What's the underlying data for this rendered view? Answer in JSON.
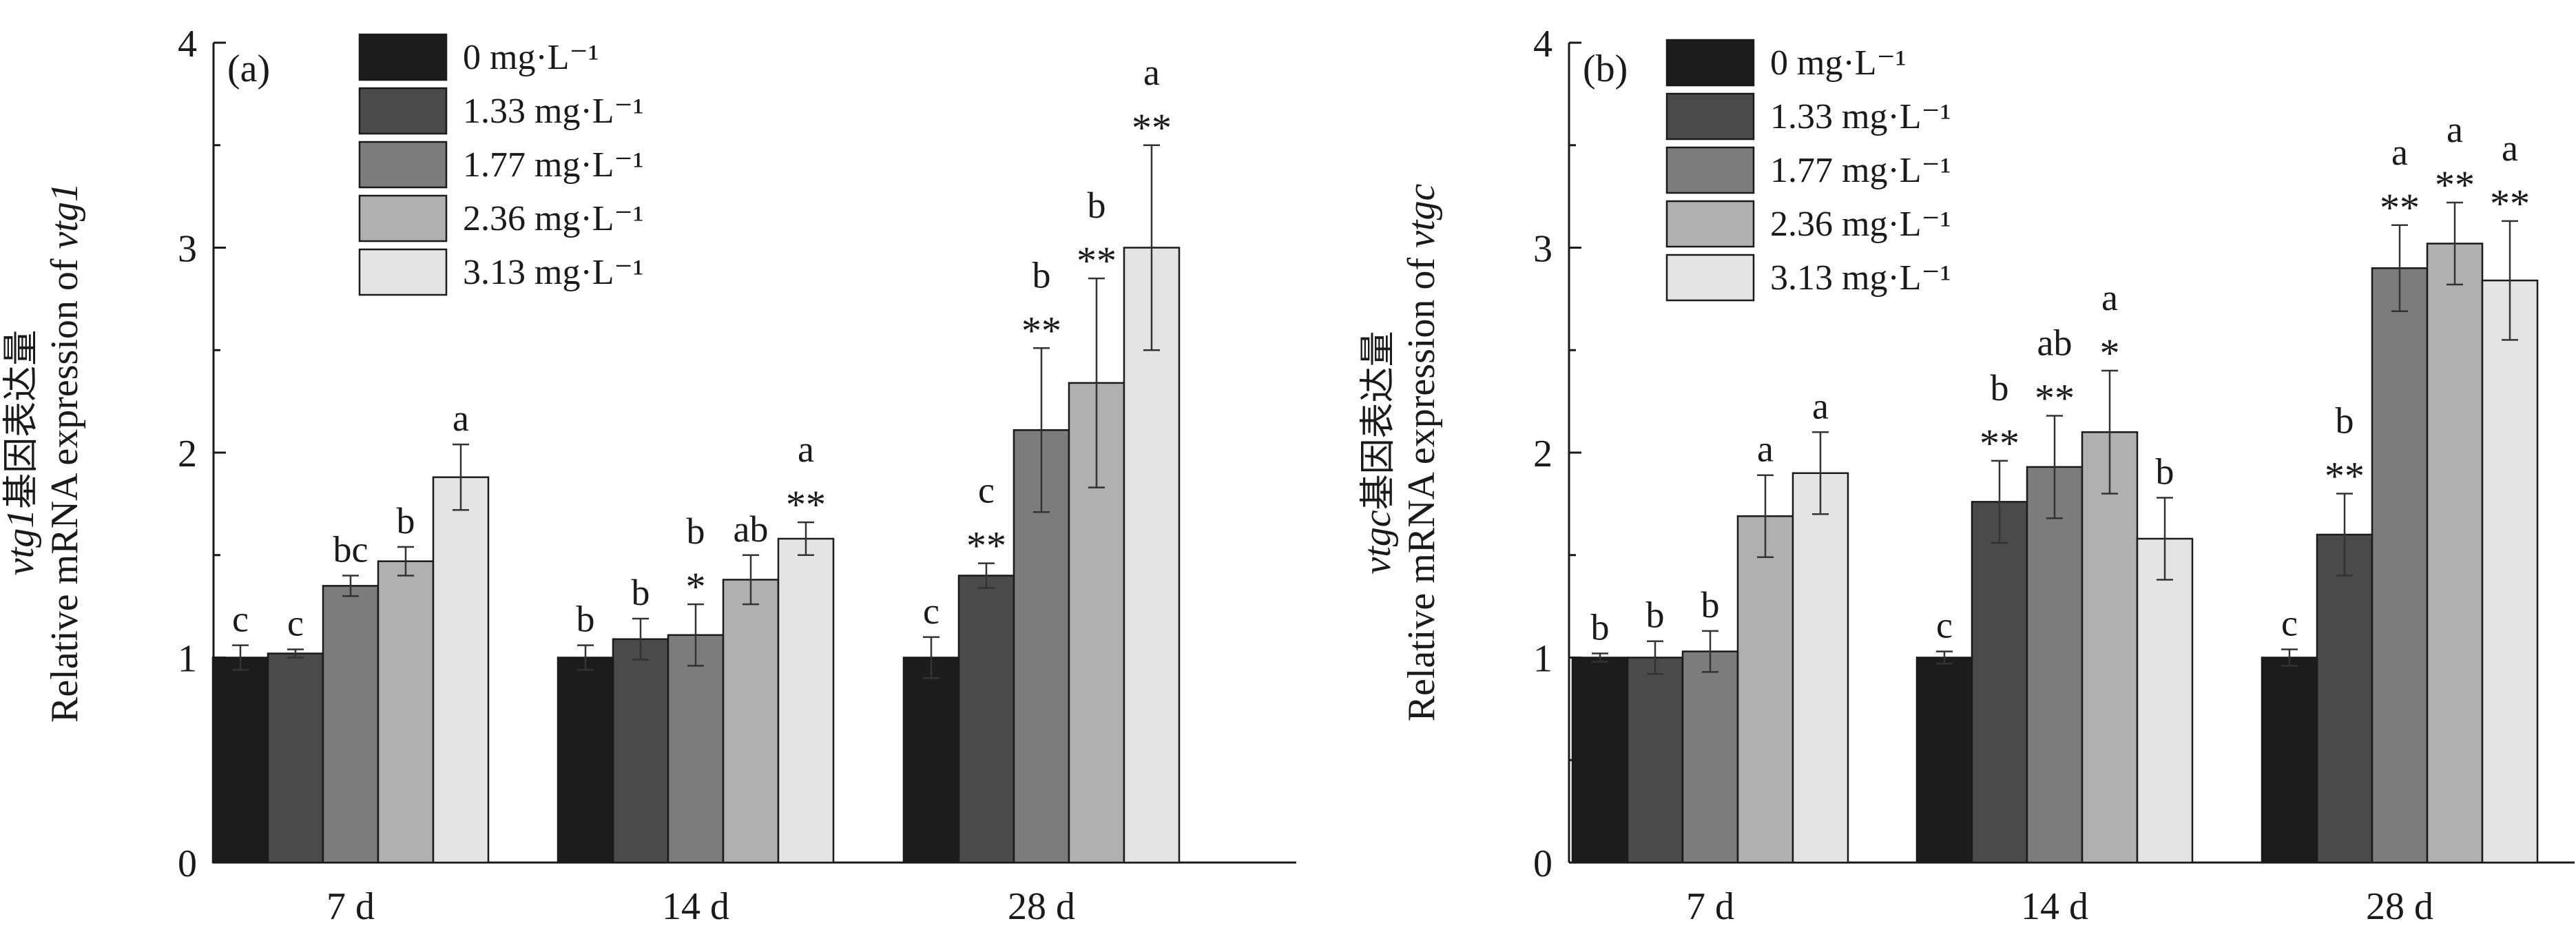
{
  "chart_data": [
    {
      "type": "bar",
      "panel_label": "(a)",
      "ylabel_line1_italic": "vtg1",
      "ylabel_line1_rest": "基因表达量",
      "ylabel_line2_prefix": "Relative mRNA expression of ",
      "ylabel_line2_italic": "vtg1",
      "ylim": [
        0,
        4
      ],
      "yticks": [
        "0",
        "1",
        "2",
        "3",
        "4"
      ],
      "categories": [
        "7 d",
        "14 d",
        "28 d"
      ],
      "legend_position": "top-left",
      "series": [
        {
          "name": "0 mg·L⁻¹",
          "color": "#1c1c1c",
          "values": [
            1.0,
            1.0,
            1.0
          ],
          "errors": [
            0.06,
            0.06,
            0.1
          ],
          "letters": [
            "c",
            "b",
            "c"
          ],
          "stars": [
            "",
            "",
            ""
          ]
        },
        {
          "name": "1.33 mg·L⁻¹",
          "color": "#4a4a4a",
          "values": [
            1.02,
            1.09,
            1.4
          ],
          "errors": [
            0.02,
            0.1,
            0.06
          ],
          "letters": [
            "c",
            "b",
            "c"
          ],
          "stars": [
            "",
            "",
            "**"
          ]
        },
        {
          "name": "1.77 mg·L⁻¹",
          "color": "#7c7c7c",
          "values": [
            1.35,
            1.11,
            2.11
          ],
          "errors": [
            0.05,
            0.15,
            0.4
          ],
          "letters": [
            "bc",
            "b",
            "b"
          ],
          "stars": [
            "",
            "*",
            "**"
          ]
        },
        {
          "name": "2.36 mg·L⁻¹",
          "color": "#b0b0b0",
          "values": [
            1.47,
            1.38,
            2.34
          ],
          "errors": [
            0.07,
            0.12,
            0.51
          ],
          "letters": [
            "b",
            "ab",
            "b"
          ],
          "stars": [
            "",
            "",
            "**"
          ]
        },
        {
          "name": "3.13 mg·L⁻¹",
          "color": "#e4e4e4",
          "values": [
            1.88,
            1.58,
            3.0
          ],
          "errors": [
            0.16,
            0.08,
            0.5
          ],
          "letters": [
            "a",
            "a",
            "a"
          ],
          "stars": [
            "",
            "**",
            "**"
          ]
        }
      ]
    },
    {
      "type": "bar",
      "panel_label": "(b)",
      "ylabel_line1_italic": "vtgc",
      "ylabel_line1_rest": "基因表达量",
      "ylabel_line2_prefix": "Relative mRNA expression of ",
      "ylabel_line2_italic": "vtgc",
      "ylim": [
        0,
        4
      ],
      "yticks": [
        "0",
        "1",
        "2",
        "3",
        "4"
      ],
      "categories": [
        "7 d",
        "14 d",
        "28 d"
      ],
      "legend_position": "top-left",
      "series": [
        {
          "name": "0 mg·L⁻¹",
          "color": "#1c1c1c",
          "values": [
            1.0,
            1.0,
            1.0
          ],
          "errors": [
            0.02,
            0.03,
            0.04
          ],
          "letters": [
            "b",
            "c",
            "c"
          ],
          "stars": [
            "",
            "",
            ""
          ]
        },
        {
          "name": "1.33 mg·L⁻¹",
          "color": "#4a4a4a",
          "values": [
            1.0,
            1.76,
            1.6
          ],
          "errors": [
            0.08,
            0.2,
            0.2
          ],
          "letters": [
            "b",
            "b",
            "b"
          ],
          "stars": [
            "",
            "**",
            "**"
          ]
        },
        {
          "name": "1.77 mg·L⁻¹",
          "color": "#7c7c7c",
          "values": [
            1.03,
            1.93,
            2.9
          ],
          "errors": [
            0.1,
            0.25,
            0.21
          ],
          "letters": [
            "b",
            "ab",
            "a"
          ],
          "stars": [
            "",
            "**",
            "**"
          ]
        },
        {
          "name": "2.36 mg·L⁻¹",
          "color": "#b0b0b0",
          "values": [
            1.69,
            2.1,
            3.02
          ],
          "errors": [
            0.2,
            0.3,
            0.2
          ],
          "letters": [
            "a",
            "a",
            "a"
          ],
          "stars": [
            "",
            "*",
            "**"
          ]
        },
        {
          "name": "3.13 mg·L⁻¹",
          "color": "#e4e4e4",
          "values": [
            1.9,
            1.58,
            2.84
          ],
          "errors": [
            0.2,
            0.2,
            0.29
          ],
          "letters": [
            "a",
            "b",
            "a"
          ],
          "stars": [
            "",
            "",
            "**"
          ]
        }
      ]
    }
  ]
}
